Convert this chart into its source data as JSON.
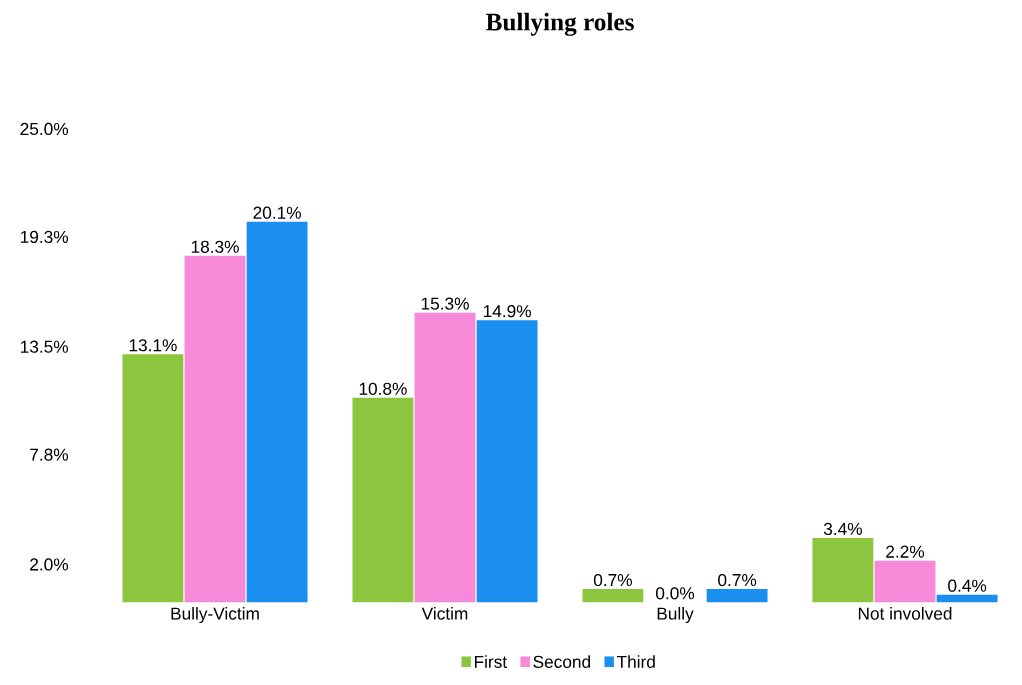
{
  "chart_data": {
    "type": "bar",
    "title": "Bullying roles",
    "categories": [
      "Bully-Victim",
      "Victim",
      "Bully",
      "Not involved"
    ],
    "series": [
      {
        "name": "First",
        "color": "#8cc63e",
        "values": [
          13.1,
          10.8,
          0.7,
          3.4
        ],
        "value_labels": [
          "13.1%",
          "10.8%",
          "0.7%",
          "3.4%"
        ]
      },
      {
        "name": "Second",
        "color": "#f78ad8",
        "values": [
          18.3,
          15.3,
          0.0,
          2.2
        ],
        "value_labels": [
          "18.3%",
          "15.3%",
          "0.0%",
          "2.2%"
        ]
      },
      {
        "name": "Third",
        "color": "#1b8ff0",
        "values": [
          20.1,
          14.9,
          0.7,
          0.4
        ],
        "value_labels": [
          "20.1%",
          "14.9%",
          "0.7%",
          "0.4%"
        ]
      }
    ],
    "ylim": [
      0,
      25
    ],
    "yticks": [
      {
        "value": 2.0,
        "label": "2.0%"
      },
      {
        "value": 7.8,
        "label": "7.8%"
      },
      {
        "value": 13.5,
        "label": "13.5%"
      },
      {
        "value": 19.3,
        "label": "19.3%"
      },
      {
        "value": 25.0,
        "label": "25.0%"
      }
    ],
    "grid": false,
    "legend": "bottom"
  }
}
